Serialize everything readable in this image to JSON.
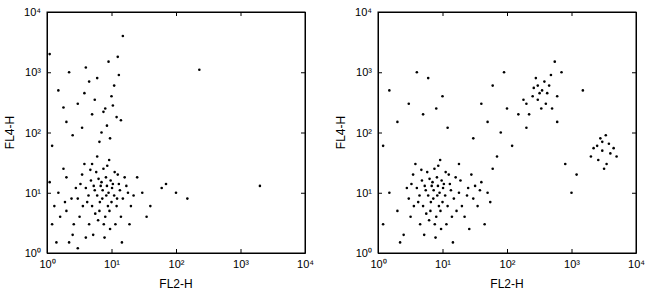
{
  "chart_data": [
    {
      "type": "scatter",
      "x_label": "FL2-H",
      "y_label": "FL4-H",
      "log": true,
      "grid": false,
      "color": "#000000",
      "marker": "circle",
      "xlim": [
        1,
        10000
      ],
      "ylim": [
        1,
        10000
      ],
      "xticks": [
        {
          "value": 1,
          "label": "10⁰"
        },
        {
          "value": 10,
          "label": "10¹"
        },
        {
          "value": 100,
          "label": "10²"
        },
        {
          "value": 1000,
          "label": "10³"
        },
        {
          "value": 10000,
          "label": "10⁴"
        }
      ],
      "yticks": [
        {
          "value": 1,
          "label": "10⁰"
        },
        {
          "value": 10,
          "label": "10¹"
        },
        {
          "value": 100,
          "label": "10²"
        },
        {
          "value": 1000,
          "label": "10³"
        },
        {
          "value": 10000,
          "label": "10⁴"
        }
      ],
      "x": [
        1.2,
        2,
        3,
        4,
        5,
        6,
        7,
        8,
        9,
        10,
        1.5,
        2.5,
        3.5,
        4.5,
        5.5,
        6.5,
        7.5,
        8.5,
        9.5,
        11,
        12,
        13,
        14,
        15,
        16,
        18,
        20,
        1.1,
        1.3,
        1.8,
        2.2,
        2.8,
        3.2,
        3.8,
        4.2,
        4.8,
        5.2,
        5.8,
        6.2,
        6.8,
        7.2,
        7.8,
        8.2,
        8.8,
        9.2,
        10.5,
        11.5,
        12.5,
        13.5,
        14.5,
        3,
        4,
        5,
        6,
        2,
        2.4,
        1.6,
        1.4,
        1.9,
        2.6,
        3.3,
        3.6,
        4.4,
        4.7,
        5.3,
        5.6,
        6.3,
        6.6,
        7.3,
        7.6,
        8.3,
        8.6,
        9.3,
        9.7,
        10.2,
        11.2,
        12.2,
        17,
        19,
        22,
        1.2,
        2,
        3,
        5,
        8,
        10,
        12,
        6,
        4,
        9,
        15,
        1.5,
        2.5,
        3.5,
        4.5,
        7,
        11,
        13,
        1.1,
        5.5,
        6.5,
        8.5,
        2.2,
        3.8,
        7.5,
        10.5,
        14,
        9.5,
        1.8,
        12.5,
        30,
        40,
        60,
        100,
        150,
        230,
        2000,
        25,
        35,
        70
      ],
      "values": [
        3,
        5,
        8,
        12,
        6,
        9,
        15,
        4,
        10,
        7,
        10,
        2,
        20,
        3,
        11,
        5,
        25,
        13,
        2.5,
        9,
        6,
        14,
        4,
        8,
        18,
        10,
        6,
        15,
        6,
        25,
        1.5,
        12,
        4,
        30,
        7,
        16,
        2,
        22,
        3.5,
        13,
        8,
        1.8,
        18,
        6,
        35,
        14,
        3,
        20,
        11,
        1.5,
        1.2,
        1.8,
        30,
        40,
        18,
        8,
        4,
        1.5,
        7,
        3,
        14,
        6,
        9,
        24,
        13,
        4.5,
        17,
        7,
        11,
        3,
        9,
        28,
        5,
        16,
        12,
        22,
        8,
        13,
        3,
        9,
        60,
        150,
        300,
        200,
        250,
        400,
        180,
        800,
        1200,
        1500,
        4000,
        500,
        90,
        120,
        700,
        100,
        600,
        900,
        2000,
        350,
        70,
        130,
        1000,
        450,
        220,
        280,
        160,
        80,
        260,
        1800,
        10,
        6,
        12,
        10,
        8,
        1100,
        13,
        18,
        4,
        14
      ]
    },
    {
      "type": "scatter",
      "x_label": "FL2-H",
      "y_label": "FL4-H",
      "log": true,
      "grid": false,
      "color": "#000000",
      "marker": "circle",
      "xlim": [
        1,
        10000
      ],
      "ylim": [
        1,
        10000
      ],
      "xticks": [
        {
          "value": 1,
          "label": "10⁰"
        },
        {
          "value": 10,
          "label": "10¹"
        },
        {
          "value": 100,
          "label": "10²"
        },
        {
          "value": 1000,
          "label": "10³"
        },
        {
          "value": 10000,
          "label": "10⁴"
        }
      ],
      "yticks": [
        {
          "value": 1,
          "label": "10⁰"
        },
        {
          "value": 10,
          "label": "10¹"
        },
        {
          "value": 100,
          "label": "10²"
        },
        {
          "value": 1000,
          "label": "10³"
        },
        {
          "value": 10000,
          "label": "10⁴"
        }
      ],
      "x": [
        1.2,
        2,
        3,
        4,
        5,
        6,
        7,
        8,
        9,
        10,
        1.5,
        2.5,
        3.5,
        4.5,
        5.5,
        6.5,
        7.5,
        8.5,
        9.5,
        11,
        12,
        13,
        14,
        15,
        16,
        18,
        20,
        25,
        30,
        40,
        2.2,
        2.8,
        3.2,
        3.8,
        4.2,
        4.8,
        5.2,
        5.8,
        6.2,
        6.8,
        7.2,
        7.8,
        8.2,
        8.8,
        9.2,
        10.5,
        11.5,
        12.5,
        13.5,
        14.5,
        22,
        28,
        35,
        50,
        60,
        45,
        18,
        24,
        32,
        55,
        3.3,
        3.6,
        4.4,
        4.7,
        5.3,
        5.6,
        6.3,
        6.6,
        7.3,
        7.6,
        8.3,
        8.6,
        9.3,
        9.7,
        10.2,
        11.2,
        16.5,
        19,
        26,
        38,
        1.2,
        2,
        3,
        5,
        8,
        10,
        6,
        4,
        1.5,
        12,
        30,
        50,
        80,
        100,
        70,
        120,
        40,
        200,
        60,
        90,
        150,
        200,
        250,
        300,
        350,
        400,
        450,
        500,
        600,
        280,
        220,
        320,
        380,
        420,
        260,
        340,
        480,
        550,
        180,
        300,
        2000,
        2500,
        3000,
        3500,
        4000,
        2800,
        3200,
        2200,
        3800,
        5000,
        2600,
        3400,
        1200,
        4500,
        3000,
        800,
        1000,
        1500,
        700,
        600
      ],
      "values": [
        3,
        5,
        8,
        12,
        6,
        9,
        15,
        4,
        10,
        7,
        10,
        2,
        20,
        3,
        11,
        5,
        25,
        13,
        2.5,
        9,
        6,
        14,
        4,
        8,
        18,
        10,
        6,
        12,
        8,
        15,
        1.5,
        12,
        4,
        30,
        7,
        16,
        2,
        22,
        3.5,
        13,
        8,
        1.8,
        18,
        6,
        35,
        14,
        3,
        20,
        11,
        1.5,
        4,
        20,
        6,
        10,
        25,
        3,
        30,
        9,
        13,
        7,
        14,
        6,
        9,
        24,
        13,
        4.5,
        17,
        7,
        11,
        3,
        9,
        28,
        5,
        16,
        12,
        22,
        5,
        16,
        2.5,
        11,
        60,
        150,
        300,
        200,
        250,
        400,
        800,
        1000,
        500,
        120,
        80,
        150,
        100,
        250,
        40,
        60,
        300,
        120,
        600,
        1000,
        200,
        300,
        400,
        350,
        500,
        300,
        600,
        250,
        400,
        800,
        200,
        450,
        700,
        450,
        550,
        250,
        900,
        1500,
        350,
        600,
        40,
        60,
        50,
        30,
        45,
        80,
        25,
        55,
        65,
        40,
        35,
        90,
        20,
        55,
        70,
        30,
        10,
        500,
        1000,
        150
      ]
    }
  ]
}
